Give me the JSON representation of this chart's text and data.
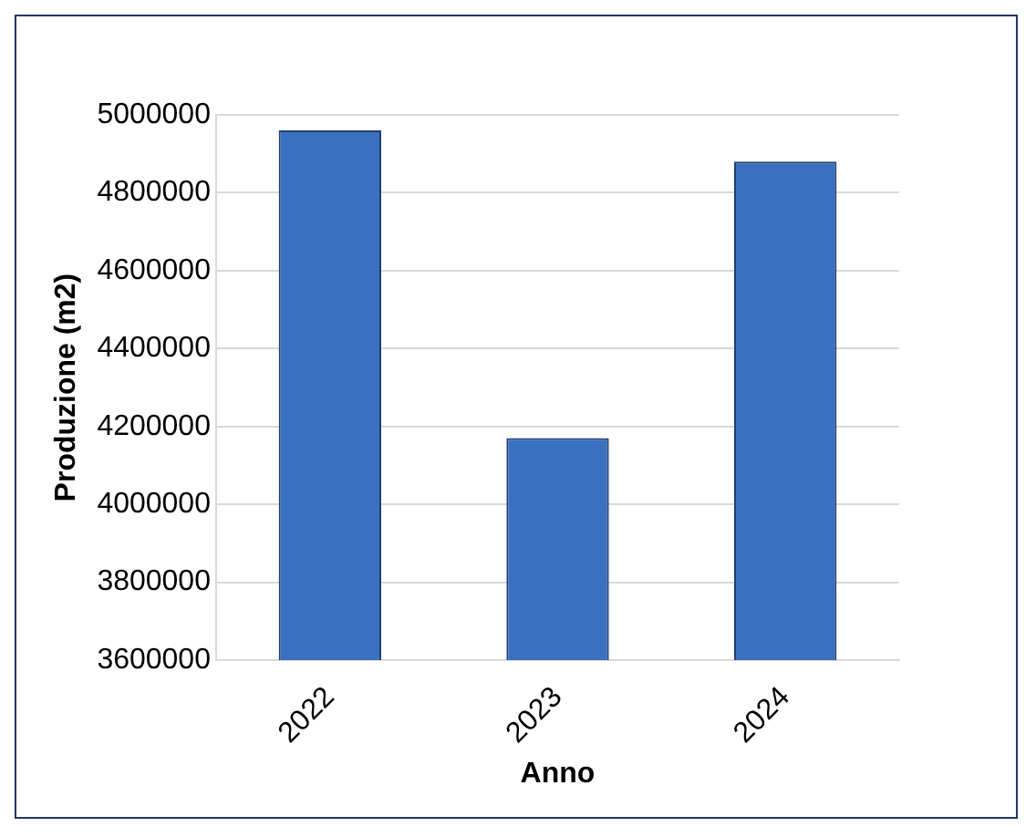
{
  "chart_data": {
    "type": "bar",
    "xlabel": "Anno",
    "ylabel": "Produzione (m2)",
    "categories": [
      "2022",
      "2023",
      "2024"
    ],
    "values": [
      4960000,
      4170000,
      4880000
    ],
    "color": "#3a70c0",
    "ylim": [
      3600000,
      5000000
    ],
    "yticks": [
      3600000,
      3800000,
      4000000,
      4200000,
      4400000,
      4600000,
      4800000,
      5000000
    ],
    "grid": "y",
    "legend": false
  }
}
